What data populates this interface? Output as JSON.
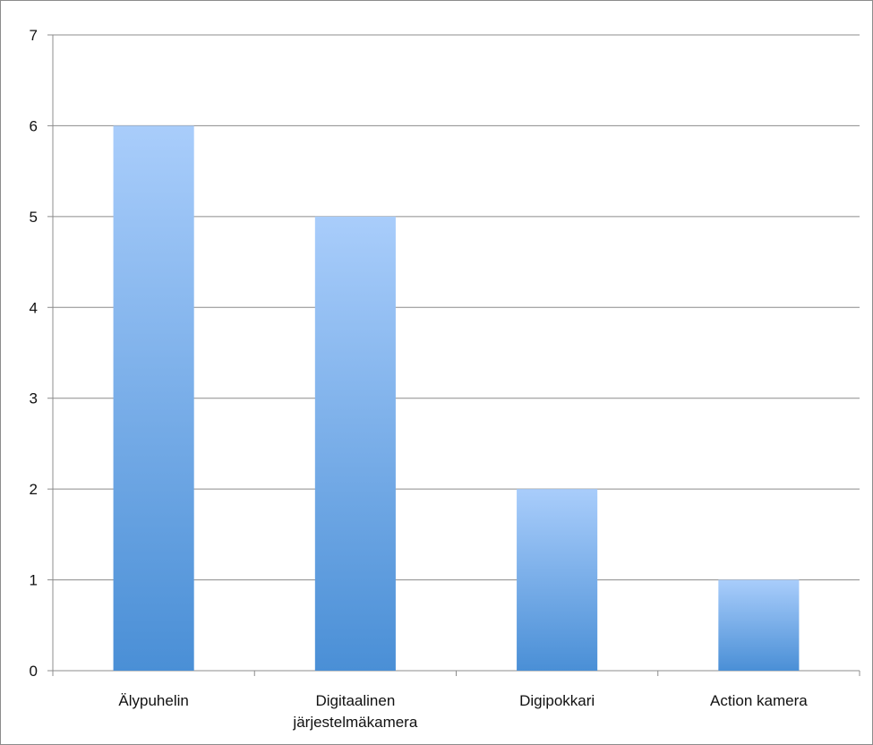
{
  "chart_data": {
    "type": "bar",
    "title": "",
    "xlabel": "",
    "ylabel": "",
    "categories": [
      [
        "Älypuhelin"
      ],
      [
        "Digitaalinen",
        "järjestelmäkamera"
      ],
      [
        "Digipokkari"
      ],
      [
        "Action kamera"
      ]
    ],
    "values": [
      6,
      5,
      2,
      1
    ],
    "ylim": [
      0,
      7
    ],
    "yticks": [
      0,
      1,
      2,
      3,
      4,
      5,
      6,
      7
    ],
    "grid": true,
    "legend": "none",
    "colors": {
      "bar_top": "#a9cdfb",
      "bar_bottom": "#4a8fd6",
      "grid": "#8c8c8c",
      "axis": "#8c8c8c"
    }
  }
}
